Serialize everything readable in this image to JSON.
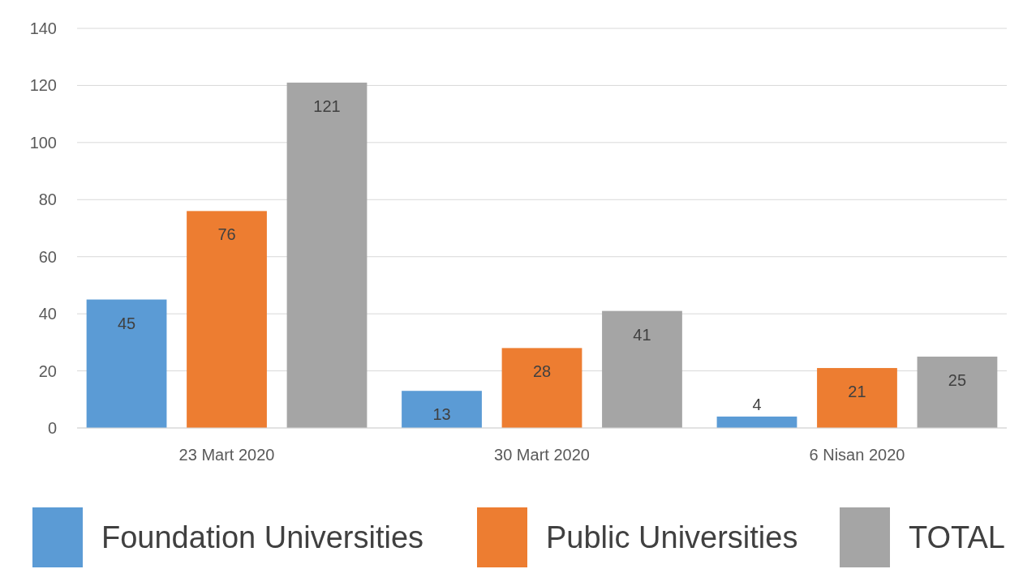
{
  "chart_data": {
    "type": "bar",
    "categories": [
      "23 Mart 2020",
      "30 Mart 2020",
      "6 Nisan 2020"
    ],
    "series": [
      {
        "name": "Foundation Universities",
        "color": "#5b9bd5",
        "values": [
          45,
          13,
          4
        ]
      },
      {
        "name": "Public Universities",
        "color": "#ed7d31",
        "values": [
          76,
          28,
          21
        ]
      },
      {
        "name": "TOTAL",
        "color": "#a5a5a5",
        "values": [
          121,
          41,
          25
        ]
      }
    ],
    "ylim": [
      0,
      140
    ],
    "yticks": [
      0,
      20,
      40,
      60,
      80,
      100,
      120,
      140
    ],
    "grid": "y",
    "legend": "bottom",
    "data_labels": true
  }
}
